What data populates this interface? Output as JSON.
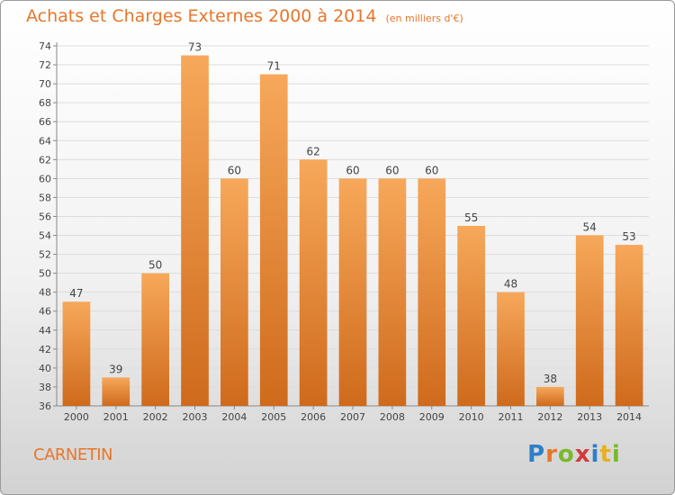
{
  "title": "Achats et Charges Externes 2000 à 2014",
  "unit_note": "(en milliers d'€)",
  "commune": "CARNETIN",
  "logo": [
    "P",
    "r",
    "o",
    "x",
    "i",
    "t",
    "i"
  ],
  "colors": {
    "bar_light": "#f7a85a",
    "bar_dark": "#cf6a1c",
    "accent": "#e8762a"
  },
  "chart_data": {
    "type": "bar",
    "categories": [
      "2000",
      "2001",
      "2002",
      "2003",
      "2004",
      "2005",
      "2006",
      "2007",
      "2008",
      "2009",
      "2010",
      "2011",
      "2012",
      "2013",
      "2014"
    ],
    "values": [
      47,
      39,
      50,
      73,
      60,
      71,
      62,
      60,
      60,
      60,
      55,
      48,
      38,
      54,
      53
    ],
    "yticks": [
      36,
      38,
      40,
      42,
      44,
      46,
      48,
      50,
      52,
      54,
      56,
      58,
      60,
      62,
      64,
      66,
      68,
      70,
      72,
      74
    ],
    "ylim": [
      36,
      74
    ],
    "grid": true,
    "legend": "none"
  }
}
